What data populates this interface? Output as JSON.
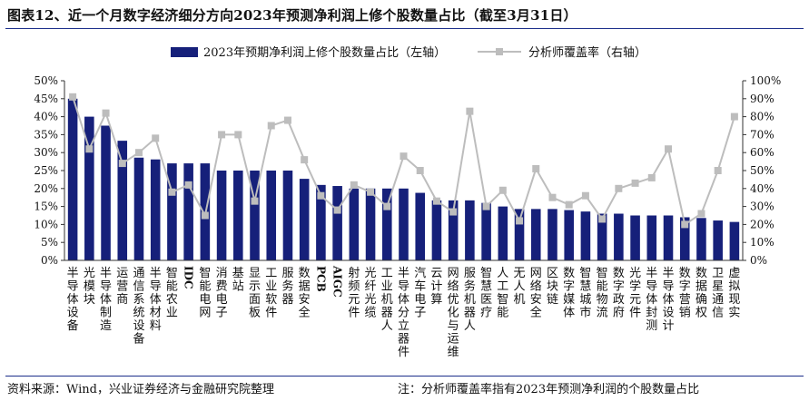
{
  "title": "图表12、近一个月数字经济细分方向2023年预测净利润上修个股数量占比（截至3月31日）",
  "source": "资料来源：Wind，兴业证券经济与金融研究院整理",
  "note": "注：分析师覆盖率指有2023年预测净利润的个股数量占比",
  "colors": {
    "bar": "#16207a",
    "line": "#bdbdbd",
    "axis": "#333333",
    "rule": "#1b2e8a"
  },
  "chart_data": {
    "type": "bar+line",
    "categories": [
      "半导体设备",
      "光模块",
      "半导体制造",
      "运营商",
      "通信系统设备",
      "半导体材料",
      "智能农业",
      "IDC",
      "智能电网",
      "消费电子",
      "基站",
      "显示面板",
      "工业软件",
      "服务器",
      "数据安全",
      "PCB",
      "AIGC",
      "射频元件",
      "光纤光缆",
      "工业机器人",
      "半导体分立器件",
      "汽车电子",
      "云计算",
      "网络优化与运维",
      "服务机器人",
      "智慧医疗",
      "人工智能",
      "无人机",
      "网络安全",
      "区块链",
      "数字媒体",
      "智慧城市",
      "智能物流",
      "数字政府",
      "光学元件",
      "半导体封测",
      "半导体设计",
      "数字营销",
      "数据确权",
      "卫星通信",
      "虚拟现实"
    ],
    "series": [
      {
        "name": "2023年预期净利润上修个股数量占比（左轴）",
        "type": "bar",
        "axis": "left",
        "values": [
          0.45,
          0.4,
          0.375,
          0.333,
          0.286,
          0.281,
          0.27,
          0.27,
          0.27,
          0.25,
          0.25,
          0.25,
          0.25,
          0.25,
          0.227,
          0.21,
          0.207,
          0.2,
          0.2,
          0.2,
          0.2,
          0.188,
          0.167,
          0.167,
          0.167,
          0.16,
          0.15,
          0.143,
          0.143,
          0.143,
          0.14,
          0.136,
          0.13,
          0.13,
          0.125,
          0.125,
          0.125,
          0.12,
          0.118,
          0.111,
          0.107
        ]
      },
      {
        "name": "分析师覆盖率（右轴）",
        "type": "line",
        "axis": "right",
        "values": [
          0.91,
          0.62,
          0.82,
          0.54,
          0.6,
          0.68,
          0.38,
          0.42,
          0.25,
          0.7,
          0.7,
          0.33,
          0.75,
          0.78,
          0.56,
          0.36,
          0.28,
          0.42,
          0.38,
          0.3,
          0.58,
          0.5,
          0.33,
          0.27,
          0.83,
          0.3,
          0.39,
          0.22,
          0.51,
          0.35,
          0.31,
          0.36,
          0.23,
          0.4,
          0.43,
          0.46,
          0.62,
          0.2,
          0.26,
          0.5,
          0.8
        ]
      }
    ],
    "y_left": {
      "min": 0,
      "max": 0.5,
      "ticks": [
        "0%",
        "5%",
        "10%",
        "15%",
        "20%",
        "25%",
        "30%",
        "35%",
        "40%",
        "45%",
        "50%"
      ]
    },
    "y_right": {
      "min": 0,
      "max": 1.0,
      "ticks": [
        "0%",
        "10%",
        "20%",
        "30%",
        "40%",
        "50%",
        "60%",
        "70%",
        "80%",
        "90%",
        "100%"
      ]
    },
    "legend_position": "top",
    "grid": false
  }
}
